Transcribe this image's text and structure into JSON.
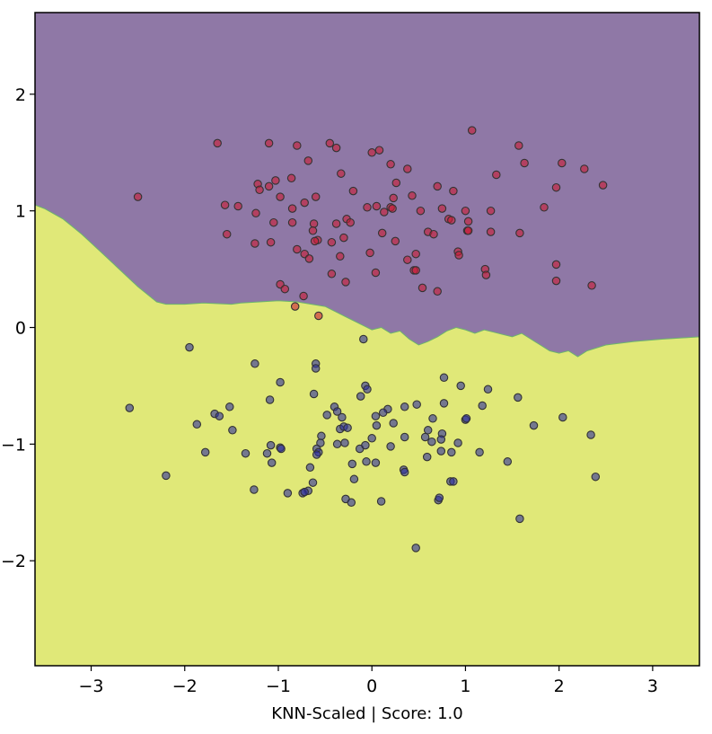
{
  "chart_data": {
    "type": "scatter",
    "title": "",
    "xlabel": "KNN-Scaled | Score: 1.0",
    "ylabel": "",
    "xlim": [
      -3.6,
      3.5
    ],
    "ylim": [
      -2.9,
      2.7
    ],
    "x_ticks": [
      -3,
      -2,
      -1,
      0,
      1,
      2,
      3
    ],
    "y_ticks": [
      -2,
      -1,
      0,
      1,
      2
    ],
    "x_tick_labels": [
      "−3",
      "−2",
      "−1",
      "0",
      "1",
      "2",
      "3"
    ],
    "y_tick_labels": [
      "−2",
      "−1",
      "0",
      "1",
      "2"
    ],
    "grid": false,
    "colors": {
      "region_upper": "#8f78a6",
      "region_lower": "#e0e878",
      "class_red": "#cc1a33",
      "class_blue": "#2b2d9e",
      "point_edge": "#333333"
    },
    "decision_boundary": [
      [
        -3.6,
        1.05
      ],
      [
        -3.5,
        1.02
      ],
      [
        -3.3,
        0.93
      ],
      [
        -3.1,
        0.8
      ],
      [
        -2.9,
        0.65
      ],
      [
        -2.7,
        0.5
      ],
      [
        -2.5,
        0.35
      ],
      [
        -2.3,
        0.22
      ],
      [
        -2.2,
        0.2
      ],
      [
        -2.0,
        0.2
      ],
      [
        -1.8,
        0.21
      ],
      [
        -1.5,
        0.2
      ],
      [
        -1.4,
        0.21
      ],
      [
        -1.2,
        0.22
      ],
      [
        -1.0,
        0.23
      ],
      [
        -0.8,
        0.22
      ],
      [
        -0.5,
        0.18
      ],
      [
        -0.3,
        0.1
      ],
      [
        -0.1,
        0.02
      ],
      [
        0.0,
        -0.02
      ],
      [
        0.1,
        0.0
      ],
      [
        0.2,
        -0.05
      ],
      [
        0.3,
        -0.03
      ],
      [
        0.4,
        -0.1
      ],
      [
        0.5,
        -0.15
      ],
      [
        0.6,
        -0.12
      ],
      [
        0.7,
        -0.08
      ],
      [
        0.8,
        -0.03
      ],
      [
        0.9,
        0.0
      ],
      [
        1.0,
        -0.02
      ],
      [
        1.1,
        -0.05
      ],
      [
        1.2,
        -0.02
      ],
      [
        1.3,
        -0.04
      ],
      [
        1.4,
        -0.06
      ],
      [
        1.5,
        -0.08
      ],
      [
        1.6,
        -0.05
      ],
      [
        1.7,
        -0.1
      ],
      [
        1.8,
        -0.15
      ],
      [
        1.9,
        -0.2
      ],
      [
        2.0,
        -0.22
      ],
      [
        2.1,
        -0.2
      ],
      [
        2.2,
        -0.25
      ],
      [
        2.3,
        -0.2
      ],
      [
        2.5,
        -0.15
      ],
      [
        2.8,
        -0.12
      ],
      [
        3.1,
        -0.1
      ],
      [
        3.5,
        -0.08
      ]
    ],
    "series": [
      {
        "class": "red",
        "points": [
          [
            -1.65,
            1.58
          ],
          [
            -1.1,
            1.58
          ],
          [
            -0.8,
            1.56
          ],
          [
            -0.45,
            1.58
          ],
          [
            -0.38,
            1.54
          ],
          [
            -0.0,
            1.5
          ],
          [
            0.08,
            1.52
          ],
          [
            1.07,
            1.69
          ],
          [
            1.57,
            1.56
          ],
          [
            -0.68,
            1.43
          ],
          [
            0.2,
            1.4
          ],
          [
            0.38,
            1.36
          ],
          [
            -0.33,
            1.32
          ],
          [
            1.63,
            1.41
          ],
          [
            2.03,
            1.41
          ],
          [
            2.27,
            1.36
          ],
          [
            1.33,
            1.31
          ],
          [
            -0.86,
            1.28
          ],
          [
            -1.03,
            1.26
          ],
          [
            -1.22,
            1.23
          ],
          [
            -1.1,
            1.21
          ],
          [
            -1.2,
            1.18
          ],
          [
            0.26,
            1.24
          ],
          [
            0.7,
            1.21
          ],
          [
            0.87,
            1.17
          ],
          [
            1.97,
            1.2
          ],
          [
            2.47,
            1.22
          ],
          [
            -2.5,
            1.12
          ],
          [
            -0.98,
            1.12
          ],
          [
            -0.6,
            1.12
          ],
          [
            -0.2,
            1.17
          ],
          [
            0.43,
            1.13
          ],
          [
            0.23,
            1.11
          ],
          [
            -1.57,
            1.05
          ],
          [
            -1.43,
            1.04
          ],
          [
            -0.72,
            1.07
          ],
          [
            -0.85,
            1.02
          ],
          [
            -0.05,
            1.03
          ],
          [
            0.05,
            1.04
          ],
          [
            0.2,
            1.03
          ],
          [
            0.22,
            1.02
          ],
          [
            0.52,
            1.0
          ],
          [
            0.75,
            1.02
          ],
          [
            1.0,
            1.0
          ],
          [
            1.27,
            1.0
          ],
          [
            1.84,
            1.03
          ],
          [
            -1.24,
            0.98
          ],
          [
            0.13,
            0.99
          ],
          [
            -0.27,
            0.93
          ],
          [
            -0.23,
            0.9
          ],
          [
            -1.05,
            0.9
          ],
          [
            -0.85,
            0.9
          ],
          [
            -0.62,
            0.89
          ],
          [
            -0.38,
            0.89
          ],
          [
            0.82,
            0.93
          ],
          [
            0.85,
            0.92
          ],
          [
            1.03,
            0.91
          ],
          [
            -1.55,
            0.8
          ],
          [
            -0.63,
            0.83
          ],
          [
            0.11,
            0.81
          ],
          [
            0.6,
            0.82
          ],
          [
            0.66,
            0.8
          ],
          [
            1.02,
            0.83
          ],
          [
            1.03,
            0.83
          ],
          [
            1.27,
            0.82
          ],
          [
            1.58,
            0.81
          ],
          [
            -1.25,
            0.72
          ],
          [
            -1.08,
            0.73
          ],
          [
            -0.58,
            0.75
          ],
          [
            -0.61,
            0.74
          ],
          [
            -0.43,
            0.73
          ],
          [
            -0.3,
            0.77
          ],
          [
            0.25,
            0.74
          ],
          [
            -0.8,
            0.67
          ],
          [
            -0.72,
            0.63
          ],
          [
            -0.67,
            0.59
          ],
          [
            -0.34,
            0.61
          ],
          [
            -0.02,
            0.64
          ],
          [
            0.38,
            0.58
          ],
          [
            0.47,
            0.63
          ],
          [
            0.92,
            0.65
          ],
          [
            0.93,
            0.62
          ],
          [
            1.97,
            0.54
          ],
          [
            0.45,
            0.49
          ],
          [
            0.47,
            0.49
          ],
          [
            -0.43,
            0.46
          ],
          [
            0.04,
            0.47
          ],
          [
            1.21,
            0.5
          ],
          [
            1.22,
            0.45
          ],
          [
            -0.98,
            0.37
          ],
          [
            -0.93,
            0.33
          ],
          [
            -0.28,
            0.39
          ],
          [
            0.54,
            0.34
          ],
          [
            0.7,
            0.31
          ],
          [
            1.97,
            0.4
          ],
          [
            2.35,
            0.36
          ],
          [
            -0.73,
            0.27
          ],
          [
            -0.82,
            0.18
          ],
          [
            -0.57,
            0.1
          ]
        ]
      },
      {
        "class": "blue",
        "points": [
          [
            -0.09,
            -0.1
          ],
          [
            -1.95,
            -0.17
          ],
          [
            -1.25,
            -0.31
          ],
          [
            -0.6,
            -0.31
          ],
          [
            -0.6,
            -0.35
          ],
          [
            0.77,
            -0.43
          ],
          [
            -0.98,
            -0.47
          ],
          [
            0.95,
            -0.5
          ],
          [
            -0.07,
            -0.5
          ],
          [
            -0.05,
            -0.53
          ],
          [
            1.24,
            -0.53
          ],
          [
            -0.62,
            -0.57
          ],
          [
            -0.12,
            -0.59
          ],
          [
            1.56,
            -0.6
          ],
          [
            -1.09,
            -0.62
          ],
          [
            0.77,
            -0.65
          ],
          [
            -2.59,
            -0.69
          ],
          [
            -1.52,
            -0.68
          ],
          [
            -0.4,
            -0.68
          ],
          [
            -0.37,
            -0.72
          ],
          [
            0.17,
            -0.7
          ],
          [
            0.35,
            -0.68
          ],
          [
            0.48,
            -0.66
          ],
          [
            1.18,
            -0.67
          ],
          [
            -1.68,
            -0.74
          ],
          [
            -1.63,
            -0.76
          ],
          [
            -0.48,
            -0.75
          ],
          [
            -0.32,
            -0.77
          ],
          [
            0.04,
            -0.76
          ],
          [
            0.12,
            -0.73
          ],
          [
            0.65,
            -0.78
          ],
          [
            1.0,
            -0.79
          ],
          [
            1.01,
            -0.78
          ],
          [
            2.04,
            -0.77
          ],
          [
            -1.87,
            -0.83
          ],
          [
            -1.49,
            -0.88
          ],
          [
            -0.34,
            -0.87
          ],
          [
            -0.3,
            -0.85
          ],
          [
            -0.26,
            -0.86
          ],
          [
            0.05,
            -0.84
          ],
          [
            0.23,
            -0.82
          ],
          [
            0.6,
            -0.88
          ],
          [
            0.75,
            -0.91
          ],
          [
            1.73,
            -0.84
          ],
          [
            -0.54,
            -0.93
          ],
          [
            0.35,
            -0.94
          ],
          [
            0.57,
            -0.94
          ],
          [
            0.74,
            -0.96
          ],
          [
            2.34,
            -0.92
          ],
          [
            -1.08,
            -1.01
          ],
          [
            -0.98,
            -1.03
          ],
          [
            -0.55,
            -0.99
          ],
          [
            -0.37,
            -1.0
          ],
          [
            -0.29,
            -0.99
          ],
          [
            -0.13,
            -1.04
          ],
          [
            -0.07,
            -1.01
          ],
          [
            0.0,
            -0.95
          ],
          [
            0.2,
            -1.02
          ],
          [
            0.64,
            -0.98
          ],
          [
            0.92,
            -0.99
          ],
          [
            -1.78,
            -1.07
          ],
          [
            -1.35,
            -1.08
          ],
          [
            -1.12,
            -1.08
          ],
          [
            -0.97,
            -1.04
          ],
          [
            -0.59,
            -1.04
          ],
          [
            -0.57,
            -1.07
          ],
          [
            -0.59,
            -1.09
          ],
          [
            0.74,
            -1.06
          ],
          [
            0.85,
            -1.07
          ],
          [
            1.15,
            -1.07
          ],
          [
            -1.07,
            -1.16
          ],
          [
            -0.21,
            -1.17
          ],
          [
            -0.06,
            -1.15
          ],
          [
            0.04,
            -1.16
          ],
          [
            0.59,
            -1.11
          ],
          [
            1.45,
            -1.15
          ],
          [
            -0.66,
            -1.2
          ],
          [
            0.34,
            -1.22
          ],
          [
            0.35,
            -1.24
          ],
          [
            -2.2,
            -1.27
          ],
          [
            -0.19,
            -1.3
          ],
          [
            0.84,
            -1.32
          ],
          [
            0.87,
            -1.32
          ],
          [
            2.39,
            -1.28
          ],
          [
            -1.26,
            -1.39
          ],
          [
            -0.63,
            -1.33
          ],
          [
            -0.68,
            -1.4
          ],
          [
            -0.9,
            -1.42
          ],
          [
            -0.74,
            -1.42
          ],
          [
            -0.72,
            -1.41
          ],
          [
            -0.28,
            -1.47
          ],
          [
            -0.22,
            -1.5
          ],
          [
            0.1,
            -1.49
          ],
          [
            0.71,
            -1.48
          ],
          [
            0.72,
            -1.46
          ],
          [
            1.58,
            -1.64
          ],
          [
            0.47,
            -1.89
          ]
        ]
      }
    ]
  }
}
